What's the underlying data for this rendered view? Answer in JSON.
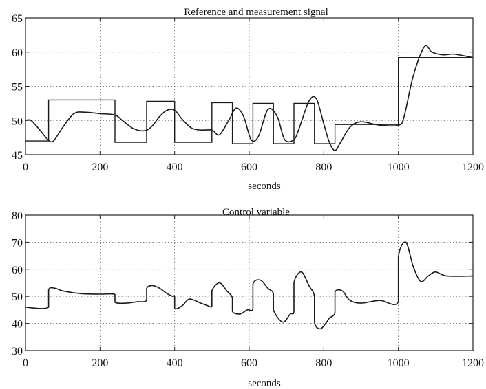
{
  "chart_data": [
    {
      "type": "line",
      "title": "Reference and measurement signal",
      "xlabel": "seconds",
      "ylabel": "",
      "xlim": [
        0,
        1200
      ],
      "ylim": [
        45,
        65
      ],
      "xticks": [
        0,
        200,
        400,
        600,
        800,
        1000,
        1200
      ],
      "yticks": [
        45,
        50,
        55,
        60,
        65
      ],
      "grid": true,
      "series": [
        {
          "style": "step",
          "x": [
            0,
            62,
            62,
            240,
            240,
            325,
            325,
            400,
            400,
            500,
            500,
            555,
            555,
            610,
            610,
            665,
            665,
            720,
            720,
            775,
            775,
            830,
            830,
            1000,
            1000,
            1200
          ],
          "y": [
            47,
            47,
            53,
            53,
            46.8,
            46.8,
            52.8,
            52.8,
            46.8,
            46.8,
            52.6,
            52.6,
            46.6,
            46.6,
            52.5,
            52.5,
            46.6,
            46.6,
            52.5,
            52.5,
            46.6,
            46.6,
            49.4,
            49.4,
            59.2,
            59.2
          ]
        },
        {
          "style": "smooth",
          "x": [
            0,
            15,
            40,
            60,
            75,
            100,
            130,
            160,
            200,
            240,
            260,
            290,
            320,
            340,
            360,
            380,
            400,
            420,
            445,
            470,
            500,
            520,
            545,
            565,
            585,
            605,
            625,
            650,
            675,
            695,
            720,
            735,
            760,
            780,
            800,
            815,
            830,
            845,
            870,
            900,
            950,
            1000,
            1015,
            1040,
            1070,
            1090,
            1120,
            1150,
            1200
          ],
          "y": [
            50,
            50,
            48.5,
            47.2,
            47.0,
            49.0,
            51.0,
            51.2,
            51.0,
            50.8,
            50.0,
            48.8,
            48.5,
            49.2,
            50.6,
            51.5,
            51.5,
            50.2,
            48.9,
            48.6,
            48.6,
            47.9,
            50.0,
            51.8,
            50.6,
            47.2,
            47.7,
            51.6,
            50.6,
            47.2,
            47.2,
            49.0,
            52.8,
            53.2,
            49.5,
            46.8,
            45.6,
            46.8,
            49.0,
            49.8,
            49.3,
            49.3,
            50.5,
            56.5,
            60.8,
            60.0,
            59.6,
            59.7,
            59.2
          ]
        }
      ]
    },
    {
      "type": "line",
      "title": "Control variable",
      "xlabel": "seconds",
      "ylabel": "",
      "xlim": [
        0,
        1200
      ],
      "ylim": [
        30,
        80
      ],
      "xticks": [
        0,
        200,
        400,
        600,
        800,
        1000,
        1200
      ],
      "yticks": [
        30,
        40,
        50,
        60,
        70,
        80
      ],
      "grid": true,
      "series": [
        {
          "style": "smooth",
          "x": [
            0,
            62,
            62,
            80,
            100,
            150,
            200,
            240,
            240,
            270,
            300,
            325,
            325,
            340,
            360,
            380,
            395,
            400,
            400,
            420,
            440,
            470,
            490,
            500,
            500,
            520,
            540,
            555,
            555,
            575,
            595,
            610,
            610,
            630,
            650,
            665,
            665,
            690,
            710,
            720,
            720,
            740,
            760,
            775,
            775,
            790,
            805,
            815,
            830,
            830,
            850,
            870,
            900,
            950,
            1000,
            1000,
            1020,
            1040,
            1060,
            1080,
            1100,
            1130,
            1200
          ],
          "y": [
            46,
            46,
            52.5,
            53,
            52,
            51,
            50.8,
            50.7,
            47.8,
            47.5,
            48,
            48.5,
            53,
            54,
            53,
            51,
            50,
            50,
            45.5,
            46.5,
            49,
            47.5,
            46.5,
            46.5,
            52,
            55,
            52,
            49.5,
            44.5,
            43.5,
            45,
            45.5,
            54.5,
            56,
            53,
            51,
            45,
            40.5,
            43.5,
            44.5,
            55,
            59,
            54,
            50,
            40.5,
            38,
            40,
            42,
            44,
            51.5,
            52,
            48.5,
            47.5,
            48.5,
            48,
            64.5,
            70,
            61,
            55.5,
            57.5,
            59,
            57.5,
            57.5
          ]
        }
      ]
    }
  ]
}
